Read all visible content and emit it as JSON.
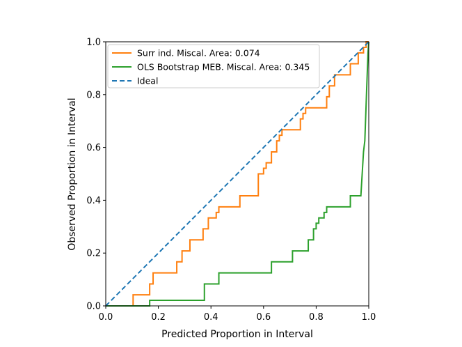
{
  "chart_data": {
    "type": "line",
    "title": "",
    "xlabel": "Predicted Proportion in Interval",
    "ylabel": "Observed Proportion in Interval",
    "xlim": [
      0.0,
      1.0
    ],
    "ylim": [
      0.0,
      1.0
    ],
    "grid": false,
    "legend_position": "top-left",
    "x_ticks": [
      "0.0",
      "0.2",
      "0.4",
      "0.6",
      "0.8",
      "1.0"
    ],
    "y_ticks": [
      "0.0",
      "0.2",
      "0.4",
      "0.6",
      "0.8",
      "1.0"
    ],
    "series": [
      {
        "name": "Surr ind. Miscal. Area: 0.074",
        "color": "#ff7f0e",
        "style": "solid",
        "x": [
          0.0,
          0.104,
          0.104,
          0.167,
          0.167,
          0.18,
          0.18,
          0.27,
          0.27,
          0.29,
          0.29,
          0.32,
          0.32,
          0.37,
          0.37,
          0.39,
          0.39,
          0.42,
          0.42,
          0.43,
          0.43,
          0.51,
          0.51,
          0.58,
          0.58,
          0.6,
          0.6,
          0.61,
          0.61,
          0.63,
          0.63,
          0.65,
          0.65,
          0.66,
          0.66,
          0.67,
          0.67,
          0.74,
          0.74,
          0.75,
          0.75,
          0.76,
          0.76,
          0.84,
          0.84,
          0.85,
          0.85,
          0.87,
          0.87,
          0.93,
          0.93,
          0.96,
          0.96,
          0.98,
          0.98,
          0.99,
          0.99,
          1.0
        ],
        "y": [
          0.0,
          0.0,
          0.042,
          0.042,
          0.083,
          0.083,
          0.125,
          0.125,
          0.167,
          0.167,
          0.208,
          0.208,
          0.25,
          0.25,
          0.292,
          0.292,
          0.333,
          0.333,
          0.354,
          0.354,
          0.375,
          0.375,
          0.417,
          0.417,
          0.5,
          0.5,
          0.521,
          0.521,
          0.542,
          0.542,
          0.583,
          0.583,
          0.625,
          0.625,
          0.646,
          0.646,
          0.667,
          0.667,
          0.708,
          0.708,
          0.729,
          0.729,
          0.75,
          0.75,
          0.792,
          0.792,
          0.833,
          0.833,
          0.875,
          0.875,
          0.917,
          0.917,
          0.958,
          0.958,
          0.979,
          0.979,
          1.0,
          1.0
        ]
      },
      {
        "name": "OLS Bootstrap MEB. Miscal. Area: 0.345",
        "color": "#2ca02c",
        "style": "solid",
        "x": [
          0.0,
          0.167,
          0.167,
          0.375,
          0.375,
          0.43,
          0.43,
          0.63,
          0.63,
          0.71,
          0.71,
          0.77,
          0.77,
          0.79,
          0.79,
          0.8,
          0.8,
          0.81,
          0.81,
          0.83,
          0.83,
          0.84,
          0.84,
          0.85,
          0.85,
          0.93,
          0.93,
          0.97,
          0.975,
          0.98,
          0.985,
          0.988,
          0.991,
          0.994,
          0.997,
          1.0
        ],
        "y": [
          0.0,
          0.0,
          0.021,
          0.021,
          0.083,
          0.083,
          0.125,
          0.125,
          0.167,
          0.167,
          0.208,
          0.208,
          0.25,
          0.25,
          0.292,
          0.292,
          0.313,
          0.313,
          0.333,
          0.333,
          0.354,
          0.354,
          0.375,
          0.375,
          0.375,
          0.375,
          0.417,
          0.417,
          0.5,
          0.583,
          0.625,
          0.708,
          0.792,
          0.875,
          0.958,
          1.0
        ]
      },
      {
        "name": "Ideal",
        "color": "#1f77b4",
        "style": "dashed",
        "x": [
          0.0,
          1.0
        ],
        "y": [
          0.0,
          1.0
        ]
      }
    ]
  }
}
